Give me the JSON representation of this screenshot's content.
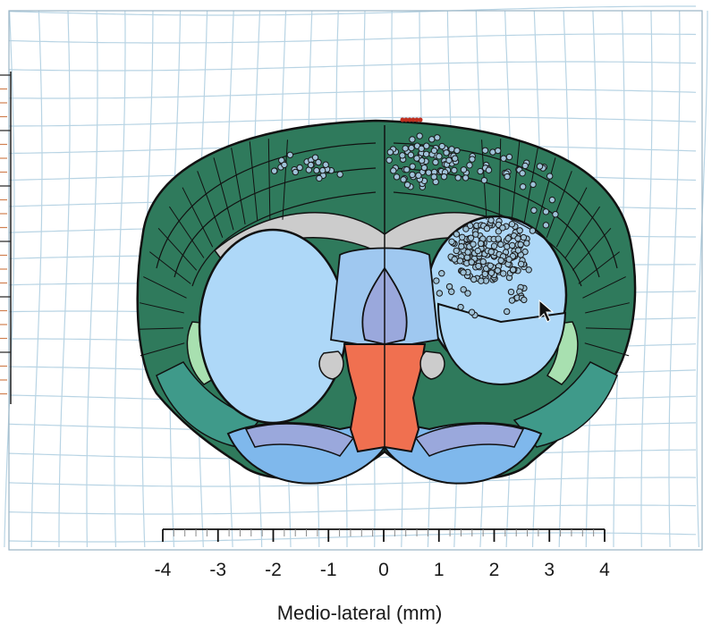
{
  "figure": {
    "axis": {
      "label": "Medio-lateral (mm)",
      "ticks": [
        {
          "value": -4,
          "label": "-4"
        },
        {
          "value": -3,
          "label": "-3"
        },
        {
          "value": -2,
          "label": "-2"
        },
        {
          "value": -1,
          "label": "-1"
        },
        {
          "value": 0,
          "label": "0"
        },
        {
          "value": 1,
          "label": "1"
        },
        {
          "value": 2,
          "label": "2"
        },
        {
          "value": 3,
          "label": "3"
        },
        {
          "value": 4,
          "label": "4"
        }
      ],
      "range": [
        -4,
        4
      ]
    },
    "colors": {
      "cortex": "#2f7a5c",
      "cortex_dark": "#1f5c44",
      "cortex_outer": "#3f9a7a",
      "lateral_band": "#a8e0b0",
      "striatum": "#aed8f8",
      "ventral": "#7fb8ec",
      "septum": "#9aa8dc",
      "thalamus": "#f07050",
      "white_matter": "#cccccc",
      "grid": "#b8d4e4",
      "markers": "#1a1a1a",
      "red_markers": "#c03020"
    }
  }
}
